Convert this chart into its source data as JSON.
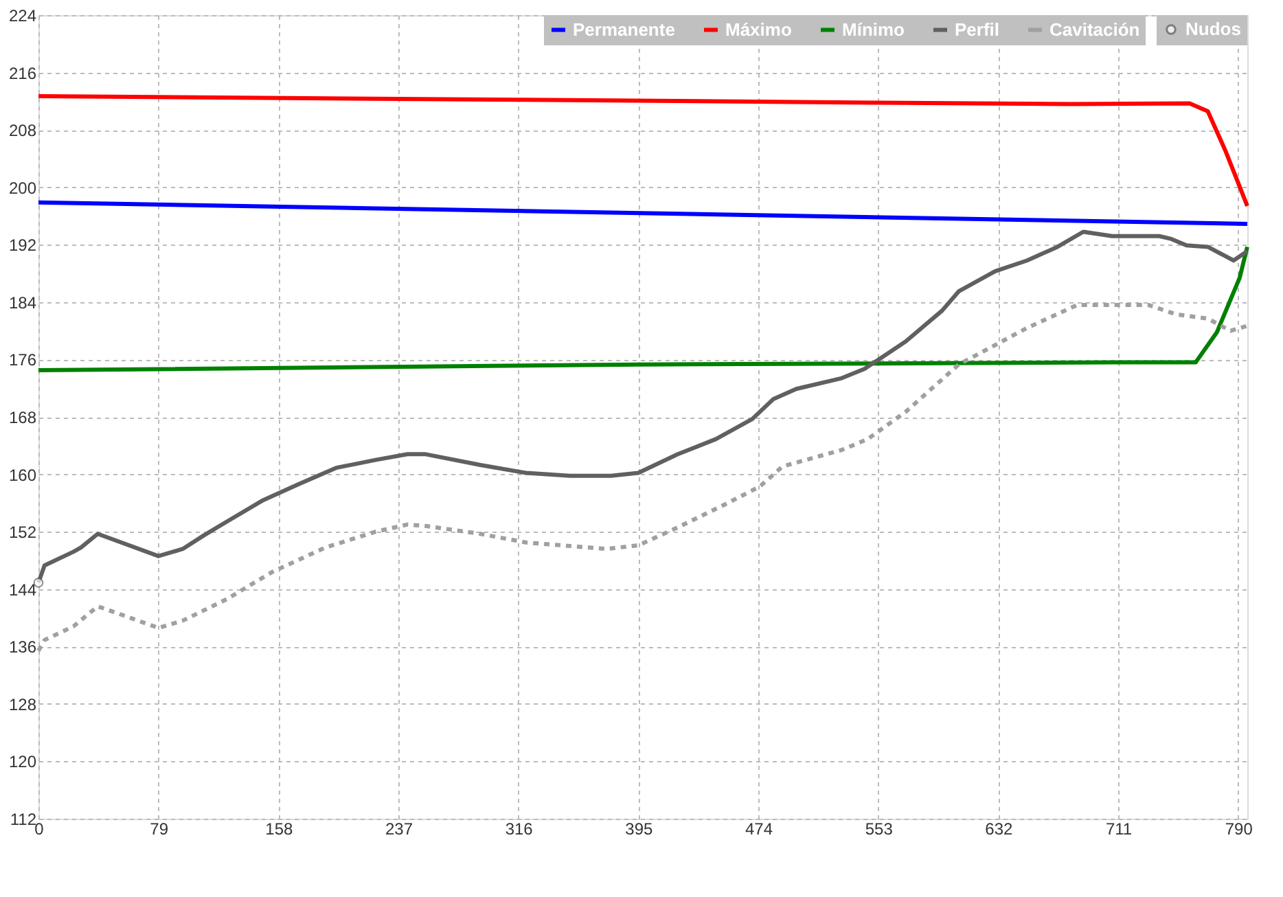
{
  "chart_data": {
    "type": "line",
    "legend": "top right",
    "grid": true,
    "xlim": [
      0,
      796
    ],
    "xticks": [
      0,
      79,
      158,
      237,
      316,
      395,
      474,
      553,
      632,
      711,
      790
    ],
    "ylim": [
      112,
      224
    ],
    "yticks": [
      112,
      120,
      128,
      136,
      144,
      152,
      160,
      168,
      176,
      184,
      192,
      200,
      208,
      216,
      224
    ],
    "series": [
      {
        "name": "Permanente",
        "color": "#0000ff",
        "line_style": "solid",
        "x": [
          0,
          796
        ],
        "values": [
          197.9,
          194.9
        ]
      },
      {
        "name": "Máximo",
        "color": "#ff0000",
        "line_style": "solid",
        "x": [
          0,
          316,
          553,
          680,
          758,
          770,
          782,
          796
        ],
        "values": [
          212.7,
          212.2,
          211.8,
          211.6,
          211.7,
          210.6,
          204.9,
          197.4
        ]
      },
      {
        "name": "Mínimo",
        "color": "#008000",
        "line_style": "solid",
        "x": [
          0,
          395,
          711,
          762,
          776,
          791,
          796
        ],
        "values": [
          174.5,
          175.3,
          175.6,
          175.6,
          179.8,
          187.4,
          191.7
        ]
      },
      {
        "name": "Perfil",
        "color": "#606060",
        "line_style": "solid",
        "x": [
          0,
          4,
          23,
          28,
          39,
          79,
          95,
          109,
          124,
          148,
          171,
          196,
          222,
          243,
          255,
          291,
          321,
          350,
          377,
          395,
          421,
          446,
          470,
          484,
          499,
          529,
          544,
          571,
          595,
          606,
          630,
          651,
          671,
          688,
          707,
          738,
          746,
          756,
          770,
          787,
          796
        ],
        "values": [
          144.9,
          147.3,
          149.2,
          149.8,
          151.7,
          148.6,
          149.6,
          151.5,
          153.4,
          156.4,
          158.6,
          160.9,
          162.0,
          162.8,
          162.8,
          161.3,
          160.2,
          159.8,
          159.8,
          160.2,
          162.8,
          164.9,
          167.7,
          170.5,
          171.9,
          173.4,
          174.7,
          178.5,
          182.8,
          185.5,
          188.3,
          189.8,
          191.7,
          193.8,
          193.2,
          193.2,
          192.8,
          191.9,
          191.7,
          189.8,
          191.1
        ]
      },
      {
        "name": "Nudos",
        "color": "#ffffff",
        "type": "scatter",
        "marker": "circle",
        "x": [
          0
        ],
        "values": [
          144.9
        ]
      },
      {
        "name": "Cavitación",
        "color": "#a0a0a0",
        "line_style": "dotted",
        "x": [
          0,
          4,
          23,
          39,
          79,
          95,
          124,
          154,
          189,
          222,
          243,
          255,
          291,
          321,
          374,
          395,
          421,
          452,
          475,
          490,
          529,
          546,
          571,
          606,
          651,
          684,
          731,
          749,
          770,
          785,
          796
        ],
        "values": [
          135.4,
          136.9,
          138.8,
          141.6,
          138.6,
          139.6,
          142.6,
          146.4,
          149.8,
          152.0,
          153.0,
          152.8,
          151.7,
          150.5,
          149.6,
          150.1,
          152.6,
          155.8,
          158.3,
          161.1,
          163.4,
          164.9,
          168.7,
          175.3,
          180.4,
          183.6,
          183.6,
          182.3,
          181.7,
          180.0,
          180.7
        ]
      }
    ]
  }
}
